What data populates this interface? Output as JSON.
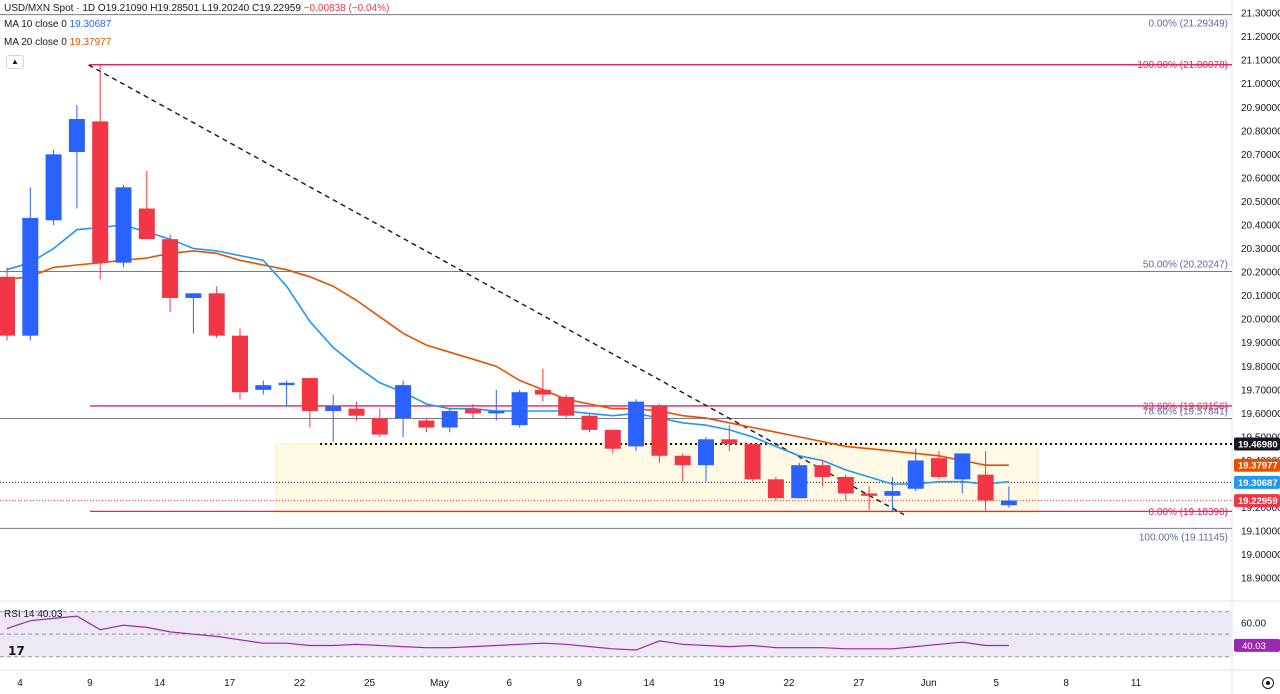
{
  "header": {
    "symbol": "USD/MXN Spot · 1D",
    "open": "O19.21090",
    "high": "H19.28501",
    "low": "L19.20240",
    "close": "C19.22959",
    "change": "−0.00838 (−0.04%)",
    "ma10_label": "MA 10 close 0",
    "ma10_value": "19.30687",
    "ma20_label": "MA 20 close 0",
    "ma20_value": "19.37977",
    "rsi_label": "RSI 14",
    "rsi_value": "40.03"
  },
  "colors": {
    "up": "#2962ff",
    "down": "#f23645",
    "ma10": "#2196f3",
    "ma20": "#e65100",
    "fib": "#e91e63",
    "gray": "#787b86",
    "rsi": "#9c27b0",
    "rsi_band": "#ede7f6"
  },
  "chart_data": {
    "type": "candlestick",
    "y_axis": {
      "range": [
        18.85,
        21.33
      ],
      "ticks": [
        "21.30000",
        "21.20000",
        "21.10000",
        "21.00000",
        "20.90000",
        "20.80000",
        "20.70000",
        "20.60000",
        "20.50000",
        "20.40000",
        "20.30000",
        "20.20000",
        "20.10000",
        "20.00000",
        "19.90000",
        "19.80000",
        "19.70000",
        "19.60000",
        "19.50000",
        "19.40000",
        "19.30000",
        "19.20000",
        "19.10000",
        "19.00000",
        "18.90000"
      ]
    },
    "x_axis": {
      "labels": [
        "4",
        "9",
        "14",
        "17",
        "22",
        "25",
        "May",
        "6",
        "9",
        "14",
        "19",
        "22",
        "27",
        "Jun",
        "5",
        "8",
        "11"
      ],
      "label_at_bar": [
        0,
        3,
        6,
        9,
        12,
        15,
        18,
        21,
        24,
        27,
        30,
        33,
        36,
        39,
        41.9,
        44.9,
        47.9
      ]
    },
    "candles": [
      {
        "o": 20.18,
        "h": 20.22,
        "l": 19.91,
        "c": 19.93
      },
      {
        "o": 19.93,
        "h": 20.56,
        "l": 19.91,
        "c": 20.43
      },
      {
        "o": 20.42,
        "h": 20.72,
        "l": 20.4,
        "c": 20.7
      },
      {
        "o": 20.71,
        "h": 20.91,
        "l": 20.47,
        "c": 20.85
      },
      {
        "o": 20.84,
        "h": 21.08,
        "l": 20.17,
        "c": 20.24
      },
      {
        "o": 20.24,
        "h": 20.57,
        "l": 20.22,
        "c": 20.56
      },
      {
        "o": 20.47,
        "h": 20.63,
        "l": 20.34,
        "c": 20.34
      },
      {
        "o": 20.34,
        "h": 20.36,
        "l": 20.03,
        "c": 20.09
      },
      {
        "o": 20.09,
        "h": 20.11,
        "l": 19.94,
        "c": 20.11
      },
      {
        "o": 20.11,
        "h": 20.14,
        "l": 19.92,
        "c": 19.93
      },
      {
        "o": 19.93,
        "h": 19.96,
        "l": 19.66,
        "c": 19.69
      },
      {
        "o": 19.7,
        "h": 19.74,
        "l": 19.68,
        "c": 19.72
      },
      {
        "o": 19.72,
        "h": 19.74,
        "l": 19.63,
        "c": 19.73
      },
      {
        "o": 19.75,
        "h": 19.75,
        "l": 19.54,
        "c": 19.61
      },
      {
        "o": 19.61,
        "h": 19.68,
        "l": 19.48,
        "c": 19.63
      },
      {
        "o": 19.62,
        "h": 19.65,
        "l": 19.57,
        "c": 19.59
      },
      {
        "o": 19.58,
        "h": 19.62,
        "l": 19.5,
        "c": 19.51
      },
      {
        "o": 19.58,
        "h": 19.74,
        "l": 19.5,
        "c": 19.72
      },
      {
        "o": 19.57,
        "h": 19.58,
        "l": 19.52,
        "c": 19.54
      },
      {
        "o": 19.54,
        "h": 19.62,
        "l": 19.52,
        "c": 19.61
      },
      {
        "o": 19.62,
        "h": 19.64,
        "l": 19.58,
        "c": 19.6
      },
      {
        "o": 19.6,
        "h": 19.7,
        "l": 19.57,
        "c": 19.61
      },
      {
        "o": 19.55,
        "h": 19.7,
        "l": 19.54,
        "c": 19.69
      },
      {
        "o": 19.7,
        "h": 19.79,
        "l": 19.65,
        "c": 19.68
      },
      {
        "o": 19.67,
        "h": 19.68,
        "l": 19.58,
        "c": 19.59
      },
      {
        "o": 19.59,
        "h": 19.6,
        "l": 19.52,
        "c": 19.53
      },
      {
        "o": 19.53,
        "h": 19.53,
        "l": 19.43,
        "c": 19.45
      },
      {
        "o": 19.46,
        "h": 19.66,
        "l": 19.44,
        "c": 19.65
      },
      {
        "o": 19.63,
        "h": 19.64,
        "l": 19.39,
        "c": 19.42
      },
      {
        "o": 19.42,
        "h": 19.43,
        "l": 19.31,
        "c": 19.38
      },
      {
        "o": 19.38,
        "h": 19.5,
        "l": 19.31,
        "c": 19.49
      },
      {
        "o": 19.49,
        "h": 19.55,
        "l": 19.44,
        "c": 19.47
      },
      {
        "o": 19.47,
        "h": 19.47,
        "l": 19.31,
        "c": 19.32
      },
      {
        "o": 19.32,
        "h": 19.33,
        "l": 19.23,
        "c": 19.24
      },
      {
        "o": 19.24,
        "h": 19.39,
        "l": 19.24,
        "c": 19.38
      },
      {
        "o": 19.38,
        "h": 19.4,
        "l": 19.29,
        "c": 19.33
      },
      {
        "o": 19.33,
        "h": 19.34,
        "l": 19.23,
        "c": 19.26
      },
      {
        "o": 19.26,
        "h": 19.29,
        "l": 19.19,
        "c": 19.25
      },
      {
        "o": 19.25,
        "h": 19.33,
        "l": 19.18,
        "c": 19.27
      },
      {
        "o": 19.28,
        "h": 19.45,
        "l": 19.27,
        "c": 19.4
      },
      {
        "o": 19.41,
        "h": 19.44,
        "l": 19.32,
        "c": 19.33
      },
      {
        "o": 19.32,
        "h": 19.43,
        "l": 19.26,
        "c": 19.43
      },
      {
        "o": 19.34,
        "h": 19.44,
        "l": 19.18,
        "c": 19.23
      },
      {
        "o": 19.21,
        "h": 19.29,
        "l": 19.2,
        "c": 19.23
      }
    ],
    "ma10": [
      20.21,
      20.24,
      20.3,
      20.38,
      20.39,
      20.4,
      20.37,
      20.34,
      20.3,
      20.29,
      20.27,
      20.25,
      20.14,
      19.99,
      19.88,
      19.8,
      19.73,
      19.69,
      19.64,
      19.62,
      19.62,
      19.61,
      19.61,
      19.61,
      19.61,
      19.6,
      19.59,
      19.6,
      19.58,
      19.56,
      19.55,
      19.53,
      19.5,
      19.46,
      19.42,
      19.4,
      19.36,
      19.33,
      19.3,
      19.3,
      19.31,
      19.31,
      19.3,
      19.31
    ],
    "ma20": [
      20.17,
      20.18,
      20.22,
      20.23,
      20.24,
      20.25,
      20.26,
      20.28,
      20.29,
      20.28,
      20.25,
      20.23,
      20.21,
      20.18,
      20.14,
      20.08,
      20.01,
      19.94,
      19.89,
      19.86,
      19.83,
      19.8,
      19.74,
      19.7,
      19.66,
      19.64,
      19.62,
      19.62,
      19.61,
      19.59,
      19.58,
      19.56,
      19.54,
      19.52,
      19.5,
      19.48,
      19.46,
      19.45,
      19.44,
      19.43,
      19.42,
      19.4,
      19.38,
      19.38
    ],
    "rsi": [
      55,
      62,
      64,
      66,
      54,
      58,
      56,
      52,
      50,
      48,
      45,
      42,
      42,
      40,
      40,
      41,
      40,
      39,
      38,
      38,
      39,
      40,
      41,
      42,
      41,
      39,
      37,
      36,
      44,
      41,
      40,
      39,
      40,
      38,
      38,
      38,
      37,
      37,
      37,
      39,
      41,
      43,
      40,
      40
    ],
    "rsi_levels": {
      "upper": 70,
      "mid": 50,
      "lower": 30,
      "ticks": [
        "60.00"
      ],
      "current": "40.03"
    },
    "fib_primary": [
      {
        "label": "100.00% (21.08078)",
        "price": 21.08078
      },
      {
        "label": "23.60% (19.63156)",
        "price": 19.63156
      },
      {
        "label": "0.00% (19.18390)",
        "price": 19.1839
      }
    ],
    "fib_secondary": [
      {
        "label": "0.00% (21.29349)",
        "price": 21.29349
      },
      {
        "label": "50.00% (20.20247)",
        "price": 20.20247
      },
      {
        "label": "78.60% (19.57841)",
        "price": 19.57841
      },
      {
        "label": "100.00% (19.11145)",
        "price": 19.11145
      }
    ],
    "horizontal_levels": {
      "resistance": 19.4698,
      "ma10": 19.30687,
      "ma20": 19.37977,
      "last": 19.22959
    },
    "price_tags": [
      {
        "text": "19.46980",
        "price": 19.4698,
        "bg": "#131722"
      },
      {
        "text": "19.37977",
        "price": 19.37977,
        "bg": "#e65100"
      },
      {
        "text": "19.30687",
        "price": 19.30687,
        "bg": "#2196f3"
      },
      {
        "text": "19.22959",
        "price": 19.22959,
        "bg": "#f23645"
      }
    ],
    "trendline": {
      "from_bar": 3.5,
      "from_price": 21.08,
      "to_bar": 38.5,
      "to_price": 19.17
    }
  }
}
